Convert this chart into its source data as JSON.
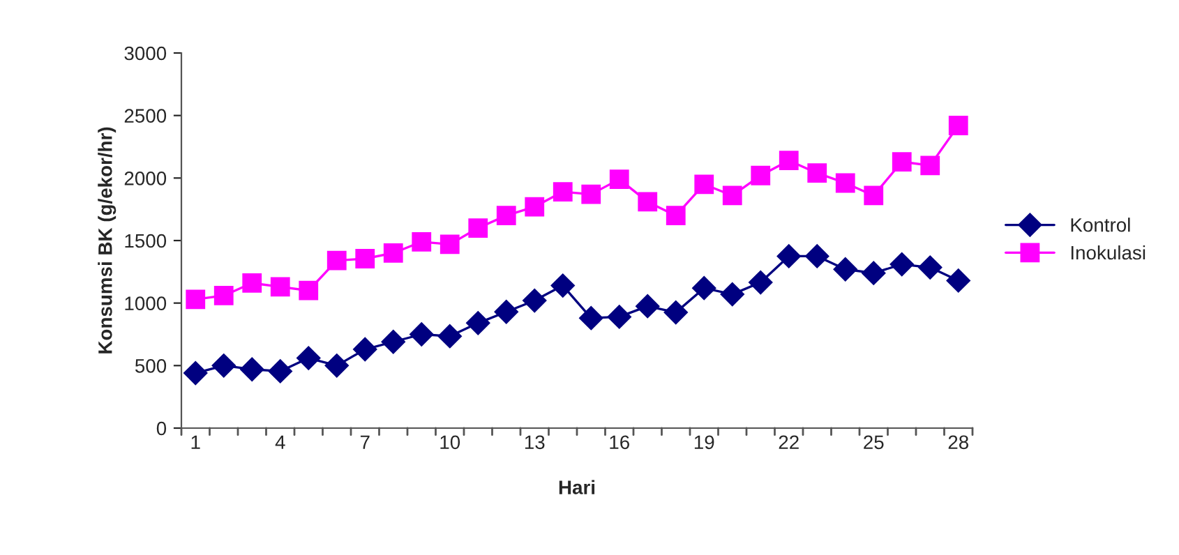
{
  "chart_data": {
    "type": "line",
    "xlabel": "Hari",
    "ylabel": "Konsumsi BK (g/ekor/hr)",
    "categories": [
      "1",
      null,
      null,
      "4",
      null,
      null,
      "7",
      null,
      null,
      "10",
      null,
      null,
      "13",
      null,
      null,
      "16",
      null,
      null,
      "19",
      null,
      null,
      "22",
      null,
      null,
      "25",
      null,
      null,
      "28"
    ],
    "series": [
      {
        "name": "Kontrol",
        "color": "#000080",
        "marker": "diamond",
        "values": [
          440,
          500,
          470,
          455,
          560,
          500,
          630,
          690,
          750,
          735,
          840,
          930,
          1020,
          1140,
          880,
          890,
          975,
          925,
          1120,
          1070,
          1165,
          1375,
          1375,
          1270,
          1240,
          1310,
          1285,
          1180
        ]
      },
      {
        "name": "Inokulasi",
        "color": "#ff00ff",
        "marker": "square",
        "values": [
          1030,
          1060,
          1160,
          1130,
          1100,
          1340,
          1355,
          1400,
          1490,
          1470,
          1600,
          1700,
          1770,
          1890,
          1870,
          1990,
          1810,
          1700,
          1950,
          1860,
          2020,
          2140,
          2040,
          1960,
          1860,
          2130,
          2100,
          2420
        ]
      }
    ],
    "ylim": [
      0,
      3000
    ],
    "yticks": [
      0,
      500,
      1000,
      1500,
      2000,
      2500,
      3000
    ],
    "legend": "right",
    "grid": false
  }
}
